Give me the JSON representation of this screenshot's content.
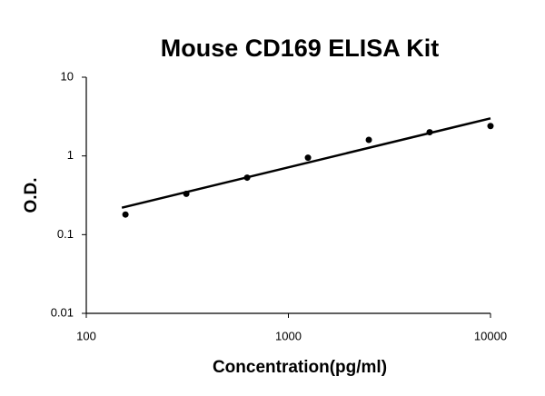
{
  "chart_data": {
    "type": "scatter",
    "title": "Mouse CD169 ELISA Kit",
    "x_label": "Concentration(pg/ml)",
    "y_label": "O.D.",
    "log_x": true,
    "log_y": true,
    "xlim": [
      100,
      10000
    ],
    "xticks": [
      100,
      1000,
      10000
    ],
    "ylim": [
      0.01,
      10
    ],
    "yticks": [
      0.01,
      0.1,
      1,
      10
    ],
    "color": "#000000",
    "x": [
      156.25,
      312.5,
      625,
      1250,
      2500,
      5000,
      10000
    ],
    "values": [
      0.18,
      0.33,
      0.53,
      0.95,
      1.6,
      2.0,
      2.4
    ],
    "trendline": {
      "x": [
        150,
        10000
      ],
      "y": [
        0.22,
        3.0
      ]
    }
  }
}
